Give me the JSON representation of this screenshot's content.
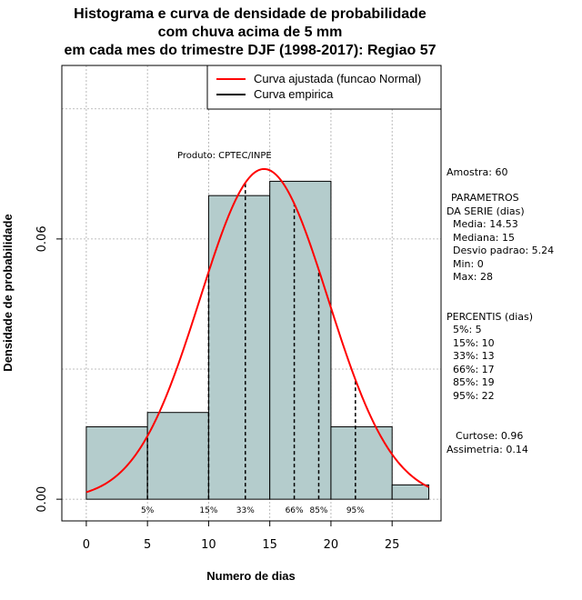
{
  "chart_data": {
    "type": "bar",
    "title_lines": [
      "Histograma e curva de densidade de probabilidade",
      "com chuva acima de 5 mm",
      "em cada mes do trimestre DJF (1998-2017): Regiao 57"
    ],
    "xlabel": "Numero de dias",
    "ylabel": "Densidade de probabilidade",
    "xlim": [
      -2,
      29
    ],
    "ylim": [
      -0.005,
      0.1
    ],
    "x_ticks": [
      0,
      5,
      10,
      15,
      20,
      25
    ],
    "y_ticks": [
      0.0,
      0.06
    ],
    "y_tick_labels": [
      "0.00",
      "0.06"
    ],
    "grid": true,
    "grid_x": [
      0,
      5,
      10,
      15,
      20,
      25
    ],
    "grid_y": [
      0.0,
      0.03,
      0.06,
      0.09
    ],
    "bins": [
      {
        "from": 0,
        "to": 5,
        "density": 0.0167
      },
      {
        "from": 5,
        "to": 10,
        "density": 0.02
      },
      {
        "from": 10,
        "to": 15,
        "density": 0.07
      },
      {
        "from": 15,
        "to": 20,
        "density": 0.0733
      },
      {
        "from": 20,
        "to": 25,
        "density": 0.0167
      },
      {
        "from": 25,
        "to": 28,
        "density": 0.0033
      }
    ],
    "normal_fit": {
      "mean": 14.53,
      "sd": 5.24,
      "range": [
        0,
        28
      ]
    },
    "percentile_lines": [
      {
        "label": "5%",
        "x": 5
      },
      {
        "label": "15%",
        "x": 10
      },
      {
        "label": "33%",
        "x": 13
      },
      {
        "label": "66%",
        "x": 17
      },
      {
        "label": "85%",
        "x": 19
      },
      {
        "label": "95%",
        "x": 22
      }
    ],
    "legend": {
      "position": "top-right",
      "entries": [
        {
          "label": "Curva ajustada (funcao Normal)",
          "color": "#ff0000"
        },
        {
          "label": "Curva empirica",
          "color": "#000000"
        }
      ]
    },
    "annotation": "Produto: CPTEC/INPE",
    "colors": {
      "bar_fill": "#b4cccc",
      "curve": "#ff0000",
      "grid": "#aaaaaa"
    }
  },
  "stats_panel": {
    "sample": "Amostra: 60",
    "params_title_1": "PARAMETROS",
    "params_title_2": "DA SERIE (dias)",
    "media": "Media: 14.53",
    "mediana": "Mediana: 15",
    "desvio": "Desvio padrao: 5.24",
    "min": "Min: 0",
    "max": "Max: 28",
    "percentis_title": "PERCENTIS (dias)",
    "p5": "5%: 5",
    "p15": "15%: 10",
    "p33": "33%: 13",
    "p66": "66%: 17",
    "p85": "85%: 19",
    "p95": "95%: 22",
    "curtose": "Curtose: 0.96",
    "assimetria": "Assimetria: 0.14"
  }
}
